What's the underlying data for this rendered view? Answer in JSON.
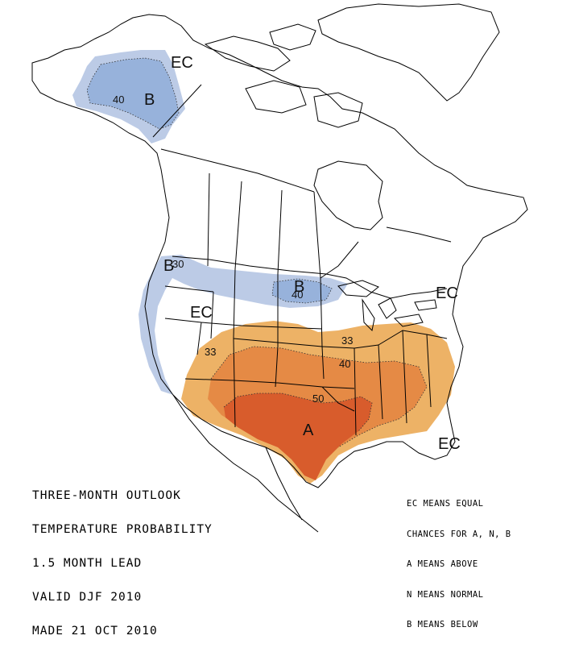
{
  "title_lines": [
    "THREE-MONTH OUTLOOK",
    "TEMPERATURE PROBABILITY",
    "1.5 MONTH LEAD",
    "VALID DJF 2010",
    "MADE 21 OCT 2010"
  ],
  "legend_lines": [
    "EC MEANS EQUAL",
    "CHANCES FOR A, N, B",
    "A MEANS ABOVE",
    "N MEANS NORMAL",
    "B MEANS BELOW"
  ],
  "region_labels": {
    "alaska_ec": "EC",
    "alaska_b": "B",
    "alaska_40": "40",
    "pnw_b": "B",
    "pnw_30": "30",
    "north_b": "B",
    "north_40": "40",
    "west_ec": "EC",
    "northeast_ec": "EC",
    "south_33_west": "33",
    "south_33_east": "33",
    "south_40": "40",
    "south_50": "50",
    "south_a": "A",
    "southeast_ec": "EC"
  },
  "colors": {
    "below_33": "#bccbe6",
    "below_40": "#97b2db",
    "above_33": "#edb266",
    "above_40": "#e58a45",
    "above_50": "#d85c2c",
    "map_lines": "#000000",
    "background": "#ffffff"
  }
}
